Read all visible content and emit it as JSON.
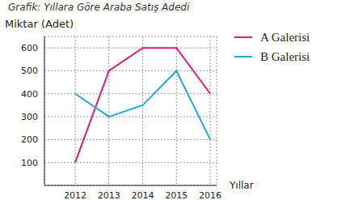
{
  "chart_data": {
    "type": "line",
    "title": "Grafik: Yıllara Göre Araba Satış Adedi",
    "y_label": "Miktar (Adet)",
    "x_label": "Yıllar",
    "categories": [
      "2012",
      "2013",
      "2014",
      "2015",
      "2016"
    ],
    "series": [
      {
        "name": "A Galerisi",
        "color": "#e5177e",
        "values": [
          100,
          500,
          600,
          600,
          400
        ]
      },
      {
        "name": "B Galerisi",
        "color": "#21a8dc",
        "values": [
          400,
          300,
          350,
          500,
          200
        ]
      }
    ],
    "ylim": [
      0,
      650
    ],
    "yticks": [
      100,
      200,
      300,
      400,
      500,
      600
    ],
    "grid": true,
    "legend": "upper right",
    "marker": "none"
  }
}
